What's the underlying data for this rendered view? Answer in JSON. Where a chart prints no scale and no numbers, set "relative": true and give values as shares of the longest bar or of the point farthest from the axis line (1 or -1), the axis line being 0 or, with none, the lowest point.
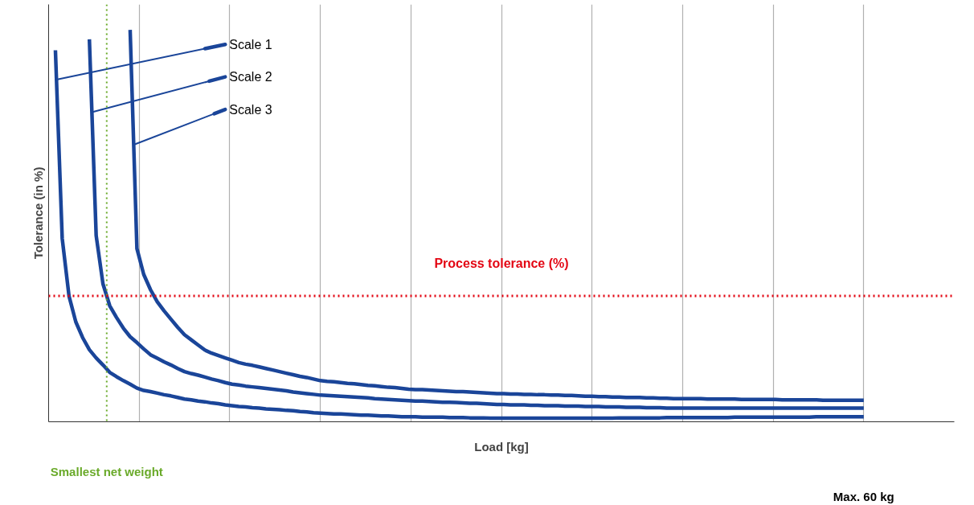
{
  "chart_data": {
    "type": "line",
    "relative": true,
    "xlabel": "Load [kg]",
    "ylabel": "Tolerance (in %)",
    "grid": "x",
    "legend": "top left",
    "marker": "none",
    "line_style": "solid",
    "annotations": [
      "Smallest net weight",
      "Max. 60 kg"
    ],
    "categories": [
      null,
      null,
      null,
      null,
      null,
      null,
      null,
      null,
      null,
      null,
      null,
      null,
      null,
      null,
      null,
      null,
      null,
      null,
      null,
      null,
      null,
      null,
      null,
      null,
      null,
      null,
      null,
      null,
      null,
      null,
      null,
      null,
      null,
      null,
      null,
      null,
      null,
      null,
      null,
      null,
      null,
      null,
      null,
      null,
      null,
      null,
      null,
      null,
      null,
      null,
      null,
      null,
      null,
      null,
      null,
      null,
      null,
      null,
      null,
      null,
      null,
      null,
      null,
      null,
      null,
      null,
      null,
      null,
      null,
      null,
      null,
      null,
      null,
      null,
      null,
      null,
      null,
      null,
      null,
      null,
      null,
      null,
      null,
      null,
      null,
      null,
      null,
      null,
      null,
      null,
      null,
      null,
      null,
      null,
      null,
      null,
      null,
      null,
      null,
      null,
      null,
      null,
      null,
      null,
      null,
      null,
      null,
      null,
      null,
      null,
      null,
      null,
      null,
      null,
      null,
      null,
      null,
      null,
      null,
      null,
      null,
      null,
      null,
      null,
      null,
      null,
      null,
      null,
      null,
      null,
      null,
      null,
      null,
      null
    ],
    "series": [
      {
        "name": "Scale 1",
        "color": "#1a4599",
        "values": [
          null,
          0.948,
          0.468,
          0.321,
          0.255,
          0.215,
          0.184,
          0.163,
          0.145,
          0.126,
          0.115,
          0.105,
          0.096,
          0.086,
          0.08,
          0.077,
          0.073,
          0.069,
          0.066,
          0.062,
          0.058,
          0.056,
          0.053,
          0.051,
          0.048,
          0.046,
          0.043,
          0.041,
          0.039,
          0.038,
          0.036,
          0.035,
          0.033,
          0.032,
          0.031,
          0.029,
          0.028,
          0.026,
          0.025,
          0.023,
          0.022,
          0.021,
          0.02,
          0.02,
          0.019,
          0.018,
          0.017,
          0.017,
          0.016,
          0.015,
          0.015,
          0.014,
          0.013,
          0.013,
          0.013,
          0.012,
          0.012,
          0.012,
          0.012,
          0.011,
          0.011,
          0.011,
          0.01,
          0.01,
          0.01,
          0.009,
          0.009,
          0.009,
          0.009,
          0.009,
          0.009,
          0.009,
          0.009,
          0.009,
          0.009,
          0.009,
          0.009,
          0.009,
          0.009,
          0.009,
          0.009,
          0.009,
          0.009,
          0.009,
          0.01,
          0.01,
          0.01,
          0.01,
          0.01,
          0.01,
          0.01,
          0.011,
          0.011,
          0.011,
          0.011,
          0.011,
          0.011,
          0.011,
          0.011,
          0.011,
          0.011,
          0.012,
          0.012,
          0.012,
          0.012,
          0.012,
          0.012,
          0.012,
          0.012,
          0.012,
          0.012,
          0.012,
          0.012,
          0.013,
          0.013,
          0.013,
          0.013,
          0.013,
          0.013,
          0.013,
          0.013,
          null,
          null,
          null,
          null,
          null,
          null,
          null,
          null,
          null,
          null,
          null,
          null,
          null
        ]
      },
      {
        "name": "Scale 2",
        "color": "#1a4599",
        "values": [
          null,
          null,
          null,
          null,
          null,
          null,
          0.976,
          0.475,
          0.352,
          0.296,
          0.266,
          0.239,
          0.217,
          0.202,
          0.186,
          0.171,
          0.162,
          0.153,
          0.145,
          0.136,
          0.128,
          0.123,
          0.119,
          0.114,
          0.109,
          0.105,
          0.1,
          0.096,
          0.094,
          0.091,
          0.089,
          0.087,
          0.085,
          0.083,
          0.081,
          0.079,
          0.076,
          0.074,
          0.072,
          0.07,
          0.068,
          0.067,
          0.066,
          0.065,
          0.064,
          0.063,
          0.062,
          0.061,
          0.059,
          0.058,
          0.057,
          0.056,
          0.055,
          0.054,
          0.053,
          0.053,
          0.052,
          0.051,
          0.05,
          0.05,
          0.049,
          0.048,
          0.047,
          0.047,
          0.046,
          0.045,
          0.044,
          0.044,
          0.043,
          0.043,
          0.043,
          0.042,
          0.042,
          0.041,
          0.041,
          0.041,
          0.04,
          0.04,
          0.04,
          0.039,
          0.039,
          0.039,
          0.038,
          0.038,
          0.038,
          0.037,
          0.037,
          0.037,
          0.036,
          0.036,
          0.036,
          0.035,
          0.035,
          0.035,
          0.035,
          0.035,
          0.035,
          0.035,
          0.035,
          0.035,
          0.035,
          0.035,
          0.035,
          0.035,
          0.035,
          0.035,
          0.035,
          0.035,
          0.035,
          0.035,
          0.035,
          0.035,
          0.035,
          0.035,
          0.035,
          0.035,
          0.035,
          0.035,
          0.035,
          0.035,
          0.035,
          null,
          null,
          null,
          null,
          null,
          null,
          null,
          null,
          null,
          null,
          null,
          null,
          null
        ]
      },
      {
        "name": "Scale 3",
        "color": "#1a4599",
        "values": [
          null,
          null,
          null,
          null,
          null,
          null,
          null,
          null,
          null,
          null,
          null,
          null,
          1,
          0.442,
          0.376,
          0.337,
          0.306,
          0.283,
          0.262,
          0.241,
          0.222,
          0.209,
          0.196,
          0.183,
          0.175,
          0.169,
          0.163,
          0.157,
          0.151,
          0.147,
          0.144,
          0.14,
          0.136,
          0.132,
          0.128,
          0.124,
          0.12,
          0.116,
          0.113,
          0.109,
          0.105,
          0.103,
          0.102,
          0.1,
          0.098,
          0.097,
          0.095,
          0.093,
          0.092,
          0.09,
          0.088,
          0.087,
          0.085,
          0.083,
          0.082,
          0.082,
          0.081,
          0.08,
          0.079,
          0.078,
          0.077,
          0.077,
          0.076,
          0.075,
          0.074,
          0.073,
          0.072,
          0.072,
          0.071,
          0.071,
          0.07,
          0.07,
          0.069,
          0.069,
          0.068,
          0.068,
          0.067,
          0.067,
          0.066,
          0.065,
          0.065,
          0.064,
          0.064,
          0.063,
          0.063,
          0.062,
          0.062,
          0.062,
          0.061,
          0.061,
          0.06,
          0.06,
          0.059,
          0.059,
          0.059,
          0.059,
          0.059,
          0.058,
          0.058,
          0.058,
          0.058,
          0.058,
          0.057,
          0.057,
          0.057,
          0.057,
          0.057,
          0.057,
          0.056,
          0.056,
          0.056,
          0.056,
          0.056,
          0.056,
          0.055,
          0.055,
          0.055,
          0.055,
          0.055,
          0.055,
          0.055,
          null,
          null,
          null,
          null,
          null,
          null,
          null,
          null,
          null,
          null,
          null,
          null,
          null
        ]
      }
    ],
    "ref_lines": [
      {
        "axis": "y",
        "value": 0.321,
        "label": "Process tolerance (%)",
        "color": "#e30613",
        "line_style": "dotted"
      }
    ]
  }
}
